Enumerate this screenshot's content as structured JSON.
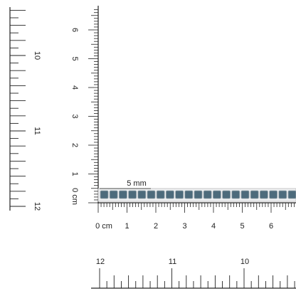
{
  "scale_note": "5 mm",
  "front_ruler": {
    "horizontal": [
      "0 cm",
      "1",
      "2",
      "3",
      "4",
      "5",
      "6"
    ],
    "vertical": [
      "0 cm",
      "1",
      "2",
      "3",
      "4",
      "5",
      "6"
    ]
  },
  "back_ruler": {
    "left": [
      "10",
      "11",
      "12"
    ],
    "bottom": [
      "12",
      "11",
      "10"
    ]
  }
}
